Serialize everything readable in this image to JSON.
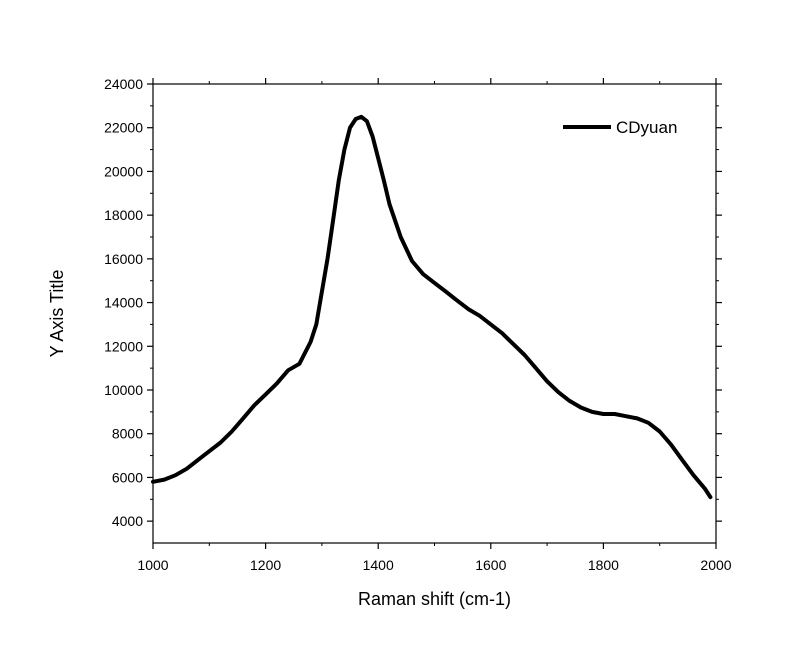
{
  "chart_data": {
    "type": "line",
    "xlabel": "Raman shift (cm-1)",
    "ylabel": "Y Axis Title",
    "xlim": [
      1000,
      2000
    ],
    "ylim": [
      3000,
      24000
    ],
    "x_ticks": [
      1000,
      1200,
      1400,
      1600,
      1800,
      2000
    ],
    "y_ticks": [
      4000,
      6000,
      8000,
      10000,
      12000,
      14000,
      16000,
      18000,
      20000,
      22000,
      24000
    ],
    "grid": false,
    "legend_position": "top-right",
    "series": [
      {
        "name": "CDyuan",
        "color": "#000000",
        "x": [
          1000,
          1020,
          1040,
          1060,
          1080,
          1100,
          1120,
          1140,
          1160,
          1180,
          1200,
          1220,
          1240,
          1260,
          1280,
          1290,
          1300,
          1310,
          1320,
          1330,
          1340,
          1350,
          1360,
          1370,
          1380,
          1390,
          1400,
          1410,
          1420,
          1440,
          1460,
          1480,
          1500,
          1520,
          1540,
          1560,
          1580,
          1600,
          1620,
          1640,
          1660,
          1680,
          1700,
          1720,
          1740,
          1760,
          1780,
          1800,
          1820,
          1840,
          1860,
          1880,
          1900,
          1920,
          1940,
          1960,
          1980,
          1990
        ],
        "y": [
          5800,
          5900,
          6100,
          6400,
          6800,
          7200,
          7600,
          8100,
          8700,
          9300,
          9800,
          10300,
          10900,
          11200,
          12200,
          13000,
          14500,
          16000,
          17800,
          19600,
          21000,
          22000,
          22400,
          22500,
          22300,
          21600,
          20600,
          19600,
          18500,
          17000,
          15900,
          15300,
          14900,
          14500,
          14100,
          13700,
          13400,
          13000,
          12600,
          12100,
          11600,
          11000,
          10400,
          9900,
          9500,
          9200,
          9000,
          8900,
          8900,
          8800,
          8700,
          8500,
          8100,
          7500,
          6800,
          6100,
          5500,
          5100
        ]
      }
    ]
  }
}
